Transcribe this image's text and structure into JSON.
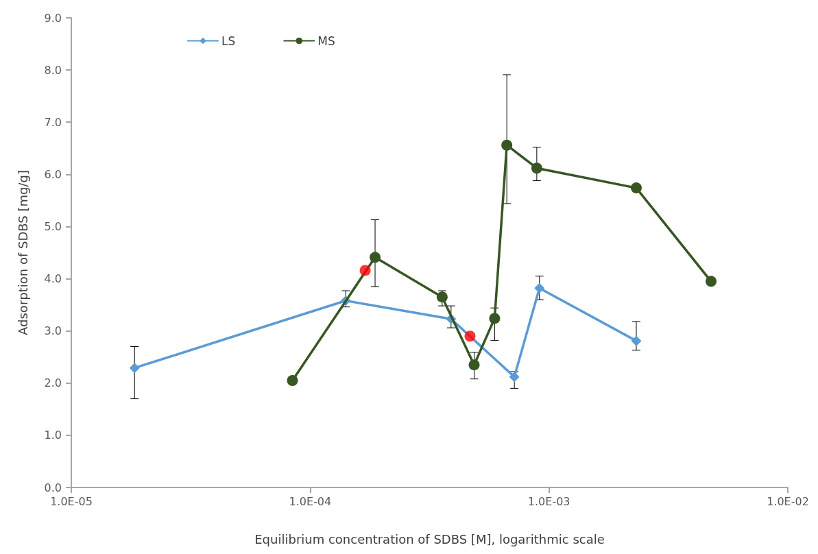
{
  "chart_data": {
    "type": "line",
    "xlabel": "Equilibrium concentration of SDBS [M], logarithmic scale",
    "ylabel": "Adsorption of SDBS [mg/g]",
    "log": "x",
    "xlim": [
      1e-05,
      0.01
    ],
    "xticks": [
      {
        "value": 1e-05,
        "label": "1.0E-05"
      },
      {
        "value": 0.0001,
        "label": "1.0E-04"
      },
      {
        "value": 0.001,
        "label": "1.0E-03"
      },
      {
        "value": 0.01,
        "label": "1.0E-02"
      }
    ],
    "ylim": [
      0,
      9
    ],
    "yticks": [
      {
        "value": 0,
        "label": "0.0"
      },
      {
        "value": 1,
        "label": "1.0"
      },
      {
        "value": 2,
        "label": "2.0"
      },
      {
        "value": 3,
        "label": "3.0"
      },
      {
        "value": 4,
        "label": "4.0"
      },
      {
        "value": 5,
        "label": "5.0"
      },
      {
        "value": 6,
        "label": "6.0"
      },
      {
        "value": 7,
        "label": "7.0"
      },
      {
        "value": 8,
        "label": "8.0"
      },
      {
        "value": 9,
        "label": "9.0"
      }
    ],
    "grid": false,
    "legend": "top left",
    "series": [
      {
        "name": "LS",
        "color": "#5b9bd5",
        "marker": "diamond",
        "x": [
          1.84e-05,
          0.000141,
          0.000389,
          0.000716,
          0.000912,
          0.00232
        ],
        "values": [
          2.29,
          3.58,
          3.23,
          2.12,
          3.82,
          2.81
        ],
        "errors": [
          [
            1.7,
            2.7
          ],
          [
            3.46,
            3.77
          ],
          [
            3.06,
            3.48
          ],
          [
            1.9,
            2.22
          ],
          [
            3.6,
            4.05
          ],
          [
            2.63,
            3.18
          ]
        ]
      },
      {
        "name": "MS",
        "color": "#375623",
        "marker": "circle",
        "x": [
          8.43e-05,
          0.000187,
          0.000357,
          0.000486,
          0.000592,
          0.000666,
          0.000889,
          0.00232,
          0.00477
        ],
        "values": [
          2.05,
          4.41,
          3.65,
          2.35,
          3.24,
          6.56,
          6.12,
          5.74,
          3.95
        ],
        "errors": [
          null,
          [
            3.85,
            5.13
          ],
          [
            3.48,
            3.77
          ],
          [
            2.08,
            2.59
          ],
          [
            2.82,
            3.44
          ],
          [
            5.44,
            7.91
          ],
          [
            5.88,
            6.52
          ],
          null,
          null
        ]
      },
      {
        "type": "scatter",
        "color": "#ff0000",
        "marker": "circle",
        "x": [
          0.00017,
          0.000467
        ],
        "values": [
          4.16,
          2.9
        ]
      }
    ]
  }
}
